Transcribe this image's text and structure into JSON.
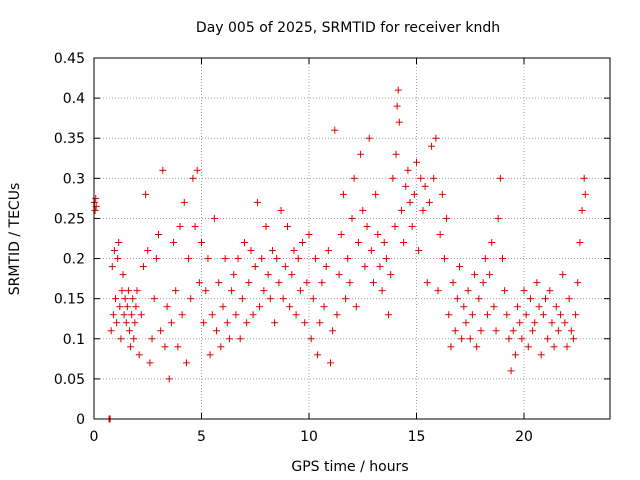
{
  "chart_data": {
    "type": "scatter",
    "title": "Day 005 of 2025, SRMTID for receiver kndh",
    "xlabel": "GPS time / hours",
    "ylabel": "SRMTID / TECUs",
    "xlim": [
      0,
      24
    ],
    "ylim": [
      0,
      0.45
    ],
    "xticks": [
      0,
      5,
      10,
      15,
      20
    ],
    "xtick_labels": [
      "0",
      "5",
      "10",
      "15",
      "20"
    ],
    "yticks": [
      0,
      0.05,
      0.1,
      0.15,
      0.2,
      0.25,
      0.3,
      0.35,
      0.4,
      0.45
    ],
    "ytick_labels": [
      "0",
      "0.05",
      "0.1",
      "0.15",
      "0.2",
      "0.25",
      "0.3",
      "0.35",
      "0.4",
      "0.45"
    ],
    "grid": true,
    "marker": "+",
    "color": "#e00000",
    "series": [
      {
        "name": "SRMTID",
        "x": [
          0.02,
          0.05,
          0.08,
          0.1,
          0.7,
          0.72,
          0.75,
          0.8,
          0.85,
          0.9,
          0.95,
          1.0,
          1.05,
          1.1,
          1.15,
          1.2,
          1.25,
          1.3,
          1.35,
          1.4,
          1.45,
          1.5,
          1.55,
          1.6,
          1.65,
          1.7,
          1.75,
          1.8,
          1.85,
          1.9,
          1.95,
          2.0,
          2.1,
          2.2,
          2.3,
          2.4,
          2.5,
          2.6,
          2.7,
          2.8,
          2.9,
          3.0,
          3.1,
          3.2,
          3.3,
          3.4,
          3.5,
          3.6,
          3.7,
          3.8,
          3.9,
          4.0,
          4.1,
          4.2,
          4.3,
          4.4,
          4.5,
          4.6,
          4.7,
          4.8,
          4.9,
          5.0,
          5.1,
          5.2,
          5.3,
          5.4,
          5.5,
          5.6,
          5.7,
          5.8,
          5.9,
          6.0,
          6.1,
          6.2,
          6.3,
          6.4,
          6.5,
          6.6,
          6.7,
          6.8,
          6.9,
          7.0,
          7.1,
          7.2,
          7.3,
          7.4,
          7.5,
          7.6,
          7.7,
          7.8,
          7.9,
          8.0,
          8.1,
          8.2,
          8.3,
          8.4,
          8.5,
          8.6,
          8.7,
          8.8,
          8.9,
          9.0,
          9.1,
          9.2,
          9.3,
          9.4,
          9.5,
          9.6,
          9.7,
          9.8,
          9.9,
          10.0,
          10.1,
          10.2,
          10.3,
          10.4,
          10.5,
          10.6,
          10.7,
          10.8,
          10.9,
          11.0,
          11.1,
          11.2,
          11.3,
          11.4,
          11.5,
          11.6,
          11.7,
          11.8,
          11.9,
          12.0,
          12.1,
          12.2,
          12.3,
          12.4,
          12.5,
          12.6,
          12.7,
          12.8,
          12.9,
          13.0,
          13.1,
          13.2,
          13.3,
          13.4,
          13.5,
          13.6,
          13.7,
          13.8,
          13.9,
          14.0,
          14.05,
          14.1,
          14.15,
          14.2,
          14.3,
          14.4,
          14.5,
          14.6,
          14.7,
          14.8,
          14.9,
          15.0,
          15.1,
          15.2,
          15.3,
          15.4,
          15.5,
          15.6,
          15.7,
          15.8,
          15.9,
          16.0,
          16.1,
          16.2,
          16.3,
          16.4,
          16.5,
          16.6,
          16.7,
          16.8,
          16.9,
          17.0,
          17.1,
          17.2,
          17.3,
          17.4,
          17.5,
          17.6,
          17.7,
          17.8,
          17.9,
          18.0,
          18.1,
          18.2,
          18.3,
          18.4,
          18.5,
          18.6,
          18.7,
          18.8,
          18.9,
          19.0,
          19.1,
          19.2,
          19.3,
          19.4,
          19.5,
          19.6,
          19.7,
          19.8,
          19.9,
          20.0,
          20.1,
          20.2,
          20.3,
          20.4,
          20.5,
          20.6,
          20.7,
          20.8,
          20.9,
          21.0,
          21.1,
          21.2,
          21.3,
          21.4,
          21.5,
          21.6,
          21.7,
          21.8,
          21.9,
          22.0,
          22.1,
          22.2,
          22.3,
          22.4,
          22.5,
          22.6,
          22.7,
          22.8,
          22.85
        ],
        "y": [
          0.27,
          0.26,
          0.275,
          0.265,
          0.0,
          0.0,
          0.0,
          0.11,
          0.19,
          0.13,
          0.21,
          0.15,
          0.12,
          0.2,
          0.22,
          0.14,
          0.1,
          0.16,
          0.18,
          0.13,
          0.15,
          0.12,
          0.14,
          0.16,
          0.11,
          0.09,
          0.13,
          0.15,
          0.1,
          0.12,
          0.14,
          0.16,
          0.08,
          0.13,
          0.19,
          0.28,
          0.21,
          0.07,
          0.1,
          0.15,
          0.2,
          0.23,
          0.11,
          0.31,
          0.09,
          0.14,
          0.05,
          0.12,
          0.22,
          0.16,
          0.09,
          0.24,
          0.13,
          0.27,
          0.07,
          0.2,
          0.15,
          0.3,
          0.24,
          0.31,
          0.17,
          0.22,
          0.12,
          0.16,
          0.2,
          0.08,
          0.13,
          0.25,
          0.11,
          0.17,
          0.09,
          0.14,
          0.2,
          0.12,
          0.1,
          0.16,
          0.18,
          0.13,
          0.2,
          0.1,
          0.15,
          0.22,
          0.12,
          0.17,
          0.21,
          0.13,
          0.19,
          0.27,
          0.14,
          0.2,
          0.16,
          0.24,
          0.18,
          0.15,
          0.21,
          0.12,
          0.2,
          0.17,
          0.26,
          0.15,
          0.19,
          0.24,
          0.14,
          0.18,
          0.21,
          0.13,
          0.2,
          0.16,
          0.22,
          0.12,
          0.17,
          0.23,
          0.1,
          0.15,
          0.2,
          0.08,
          0.12,
          0.17,
          0.14,
          0.19,
          0.21,
          0.07,
          0.11,
          0.36,
          0.13,
          0.18,
          0.23,
          0.28,
          0.15,
          0.2,
          0.17,
          0.25,
          0.3,
          0.14,
          0.22,
          0.33,
          0.26,
          0.19,
          0.24,
          0.35,
          0.21,
          0.17,
          0.28,
          0.23,
          0.19,
          0.16,
          0.22,
          0.2,
          0.13,
          0.18,
          0.3,
          0.24,
          0.33,
          0.39,
          0.41,
          0.37,
          0.26,
          0.22,
          0.29,
          0.31,
          0.27,
          0.24,
          0.28,
          0.32,
          0.21,
          0.3,
          0.26,
          0.29,
          0.17,
          0.27,
          0.34,
          0.3,
          0.35,
          0.16,
          0.23,
          0.28,
          0.2,
          0.25,
          0.13,
          0.09,
          0.17,
          0.11,
          0.15,
          0.19,
          0.1,
          0.14,
          0.12,
          0.16,
          0.1,
          0.13,
          0.18,
          0.09,
          0.15,
          0.11,
          0.17,
          0.2,
          0.13,
          0.18,
          0.22,
          0.14,
          0.11,
          0.25,
          0.3,
          0.2,
          0.16,
          0.13,
          0.1,
          0.06,
          0.11,
          0.08,
          0.14,
          0.12,
          0.1,
          0.16,
          0.13,
          0.09,
          0.15,
          0.11,
          0.12,
          0.17,
          0.14,
          0.08,
          0.13,
          0.15,
          0.1,
          0.16,
          0.12,
          0.09,
          0.14,
          0.11,
          0.13,
          0.18,
          0.12,
          0.09,
          0.15,
          0.11,
          0.1,
          0.13,
          0.17,
          0.22,
          0.26,
          0.3,
          0.28
        ]
      }
    ]
  }
}
